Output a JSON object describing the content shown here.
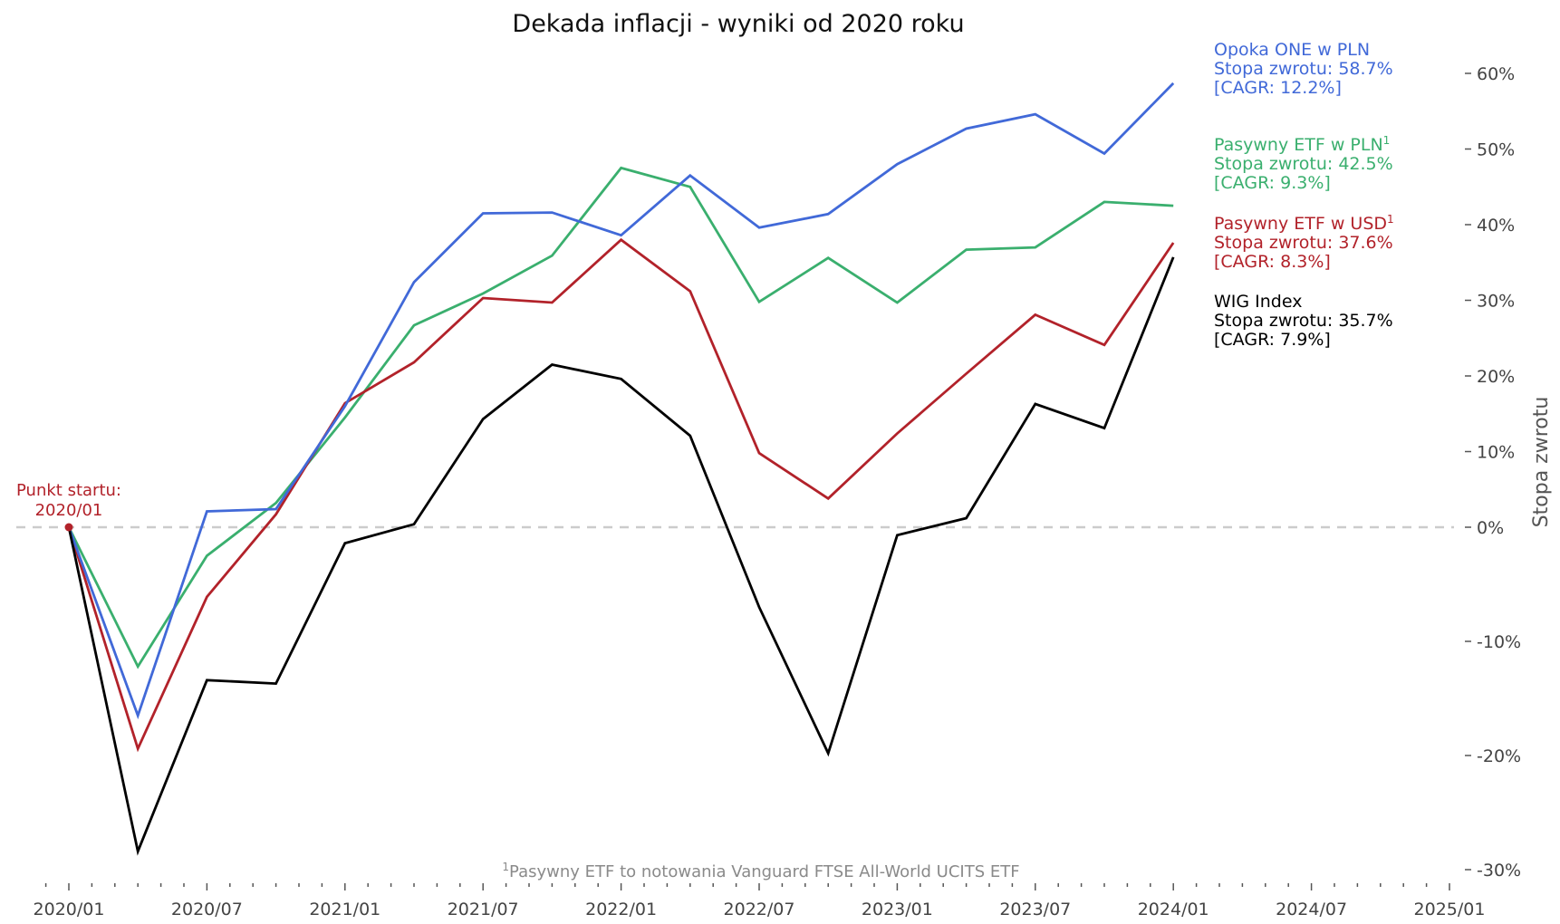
{
  "chart_data": {
    "type": "line",
    "title": "Dekada inflacji - wyniki od 2020 roku",
    "xlabel": "",
    "ylabel": "Stopa zwrotu",
    "xlim": [
      0,
      60
    ],
    "x_tick_positions": [
      0,
      6,
      12,
      18,
      24,
      30,
      36,
      42,
      48,
      54,
      60
    ],
    "x_tick_labels": [
      "2020/01",
      "2020/07",
      "2021/01",
      "2021/07",
      "2022/01",
      "2022/07",
      "2023/01",
      "2023/07",
      "2024/01",
      "2024/07",
      "2025/01"
    ],
    "y_ticks": [
      60,
      50,
      40,
      30,
      20,
      10,
      0,
      -10,
      -20,
      -30
    ],
    "y_tick_labels": [
      "60%",
      "50%",
      "40%",
      "30%",
      "20%",
      "10%",
      "0%",
      "-10%",
      "-20%",
      "-30%"
    ],
    "zero_line": "dashed",
    "grid": false,
    "x": [
      0,
      3,
      6,
      9,
      12,
      15,
      18,
      21,
      24,
      27,
      30,
      33,
      36,
      39,
      42,
      45,
      48
    ],
    "series": [
      {
        "name": "Opoka ONE w PLN",
        "color": "#4169d8",
        "values": [
          0,
          -16.5,
          2.1,
          2.4,
          16.0,
          32.4,
          41.5,
          41.6,
          38.6,
          46.5,
          39.6,
          41.4,
          48.0,
          52.7,
          54.6,
          49.4,
          58.7
        ],
        "legend": {
          "name": "Opoka ONE w PLN",
          "footnote_mark": "",
          "return": "Stopa zwrotu: 58.7%",
          "cagr": "[CAGR: 12.2%]"
        }
      },
      {
        "name": "Pasywny ETF w PLN",
        "color": "#3aaf6e",
        "values": [
          0,
          -12.2,
          -2.5,
          3.2,
          14.5,
          26.7,
          30.9,
          35.9,
          47.5,
          45.0,
          29.8,
          35.6,
          29.7,
          36.7,
          37.0,
          43.0,
          42.5
        ],
        "legend": {
          "name": "Pasywny ETF w PLN",
          "footnote_mark": "1",
          "return": "Stopa zwrotu: 42.5%",
          "cagr": "[CAGR: 9.3%]"
        }
      },
      {
        "name": "Pasywny ETF w USD",
        "color": "#b2222a",
        "values": [
          0,
          -19.4,
          -6.1,
          1.7,
          16.4,
          21.8,
          30.3,
          29.7,
          38.0,
          31.2,
          9.8,
          3.8,
          12.4,
          20.3,
          28.1,
          24.1,
          37.6
        ],
        "legend": {
          "name": "Pasywny ETF w USD",
          "footnote_mark": "1",
          "return": "Stopa zwrotu: 37.6%",
          "cagr": "[CAGR: 8.3%]"
        }
      },
      {
        "name": "WIG Index",
        "color": "#000000",
        "values": [
          0,
          -28.4,
          -13.4,
          -13.7,
          -1.4,
          0.4,
          14.3,
          21.5,
          19.6,
          12.1,
          -7.0,
          -19.8,
          -0.7,
          1.2,
          16.3,
          13.1,
          35.7
        ],
        "legend": {
          "name": "WIG Index",
          "footnote_mark": "",
          "return": "Stopa zwrotu: 35.7%",
          "cagr": "[CAGR: 7.9%]"
        }
      }
    ],
    "annotations": {
      "start_point": {
        "line1": "Punkt startu:",
        "line2": "2020/01",
        "x": 0,
        "y": 0,
        "color": "#b2222a"
      },
      "footnote": {
        "mark": "1",
        "text": "Pasywny ETF to notowania Vanguard FTSE All-World UCITS ETF"
      }
    }
  }
}
